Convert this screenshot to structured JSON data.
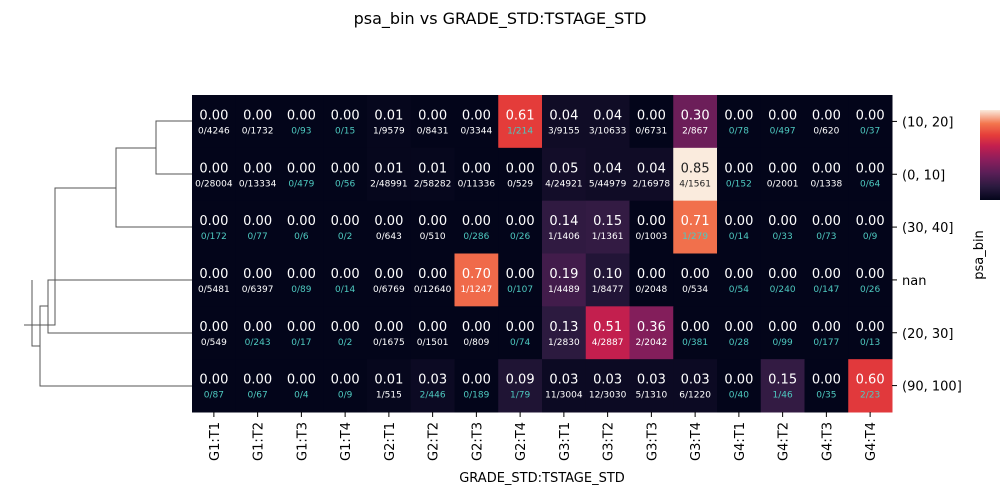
{
  "chart_data": {
    "type": "heatmap",
    "title": "psa_bin vs GRADE_STD:TSTAGE_STD",
    "xlabel": "GRADE_STD:TSTAGE_STD",
    "ylabel": "psa_bin",
    "columns": [
      "G1:T1",
      "G1:T2",
      "G1:T3",
      "G1:T4",
      "G2:T1",
      "G2:T2",
      "G2:T3",
      "G2:T4",
      "G3:T1",
      "G3:T2",
      "G3:T3",
      "G3:T4",
      "G4:T1",
      "G4:T2",
      "G4:T3",
      "G4:T4"
    ],
    "rows": [
      "(10, 20]",
      "(0, 10]",
      "(30, 40]",
      "nan",
      "(20, 30]",
      "(90, 100]"
    ],
    "values": [
      [
        "0.00",
        "0.00",
        "0.00",
        "0.00",
        "0.01",
        "0.00",
        "0.00",
        "0.61",
        "0.04",
        "0.04",
        "0.00",
        "0.30",
        "0.00",
        "0.00",
        "0.00",
        "0.00"
      ],
      [
        "0.00",
        "0.00",
        "0.00",
        "0.00",
        "0.01",
        "0.01",
        "0.00",
        "0.00",
        "0.05",
        "0.04",
        "0.04",
        "0.85",
        "0.00",
        "0.00",
        "0.00",
        "0.00"
      ],
      [
        "0.00",
        "0.00",
        "0.00",
        "0.00",
        "0.00",
        "0.00",
        "0.00",
        "0.00",
        "0.14",
        "0.15",
        "0.00",
        "0.71",
        "0.00",
        "0.00",
        "0.00",
        "0.00"
      ],
      [
        "0.00",
        "0.00",
        "0.00",
        "0.00",
        "0.00",
        "0.00",
        "0.70",
        "0.00",
        "0.19",
        "0.10",
        "0.00",
        "0.00",
        "0.00",
        "0.00",
        "0.00",
        "0.00"
      ],
      [
        "0.00",
        "0.00",
        "0.00",
        "0.00",
        "0.00",
        "0.00",
        "0.00",
        "0.00",
        "0.13",
        "0.51",
        "0.36",
        "0.00",
        "0.00",
        "0.00",
        "0.00",
        "0.00"
      ],
      [
        "0.00",
        "0.00",
        "0.00",
        "0.00",
        "0.01",
        "0.03",
        "0.00",
        "0.09",
        "0.03",
        "0.03",
        "0.03",
        "0.03",
        "0.00",
        "0.15",
        "0.00",
        "0.60"
      ]
    ],
    "counts": [
      [
        "0/4246",
        "0/1732",
        "0/93",
        "0/15",
        "1/9579",
        "0/8431",
        "0/3344",
        "1/214",
        "3/9155",
        "3/10633",
        "0/6731",
        "2/867",
        "0/78",
        "0/497",
        "0/620",
        "0/37"
      ],
      [
        "0/28004",
        "0/13334",
        "0/479",
        "0/56",
        "2/48991",
        "2/58282",
        "0/11336",
        "0/529",
        "4/24921",
        "5/44979",
        "2/16978",
        "4/1561",
        "0/152",
        "0/2001",
        "0/1338",
        "0/64"
      ],
      [
        "0/172",
        "0/77",
        "0/6",
        "0/2",
        "0/643",
        "0/510",
        "0/286",
        "0/26",
        "1/1406",
        "1/1361",
        "0/1003",
        "1/279",
        "0/14",
        "0/33",
        "0/73",
        "0/9"
      ],
      [
        "0/5481",
        "0/6397",
        "0/89",
        "0/14",
        "0/6769",
        "0/12640",
        "1/1247",
        "0/107",
        "1/4489",
        "1/8477",
        "0/2048",
        "0/534",
        "0/54",
        "0/240",
        "0/147",
        "0/26"
      ],
      [
        "0/549",
        "0/243",
        "0/17",
        "0/2",
        "0/1675",
        "0/1501",
        "0/809",
        "0/74",
        "1/2830",
        "4/2887",
        "2/2042",
        "0/381",
        "0/28",
        "0/99",
        "0/177",
        "0/13"
      ],
      [
        "0/87",
        "0/67",
        "0/4",
        "0/9",
        "1/515",
        "2/446",
        "0/189",
        "1/79",
        "11/3004",
        "12/3030",
        "5/1310",
        "6/1220",
        "0/40",
        "1/46",
        "0/35",
        "2/23"
      ]
    ],
    "low_count_color": "#4ec9c0",
    "colormap": "rocket",
    "colorbar_range": [
      0,
      0.85
    ],
    "dendrogram": "left",
    "grid": false
  }
}
